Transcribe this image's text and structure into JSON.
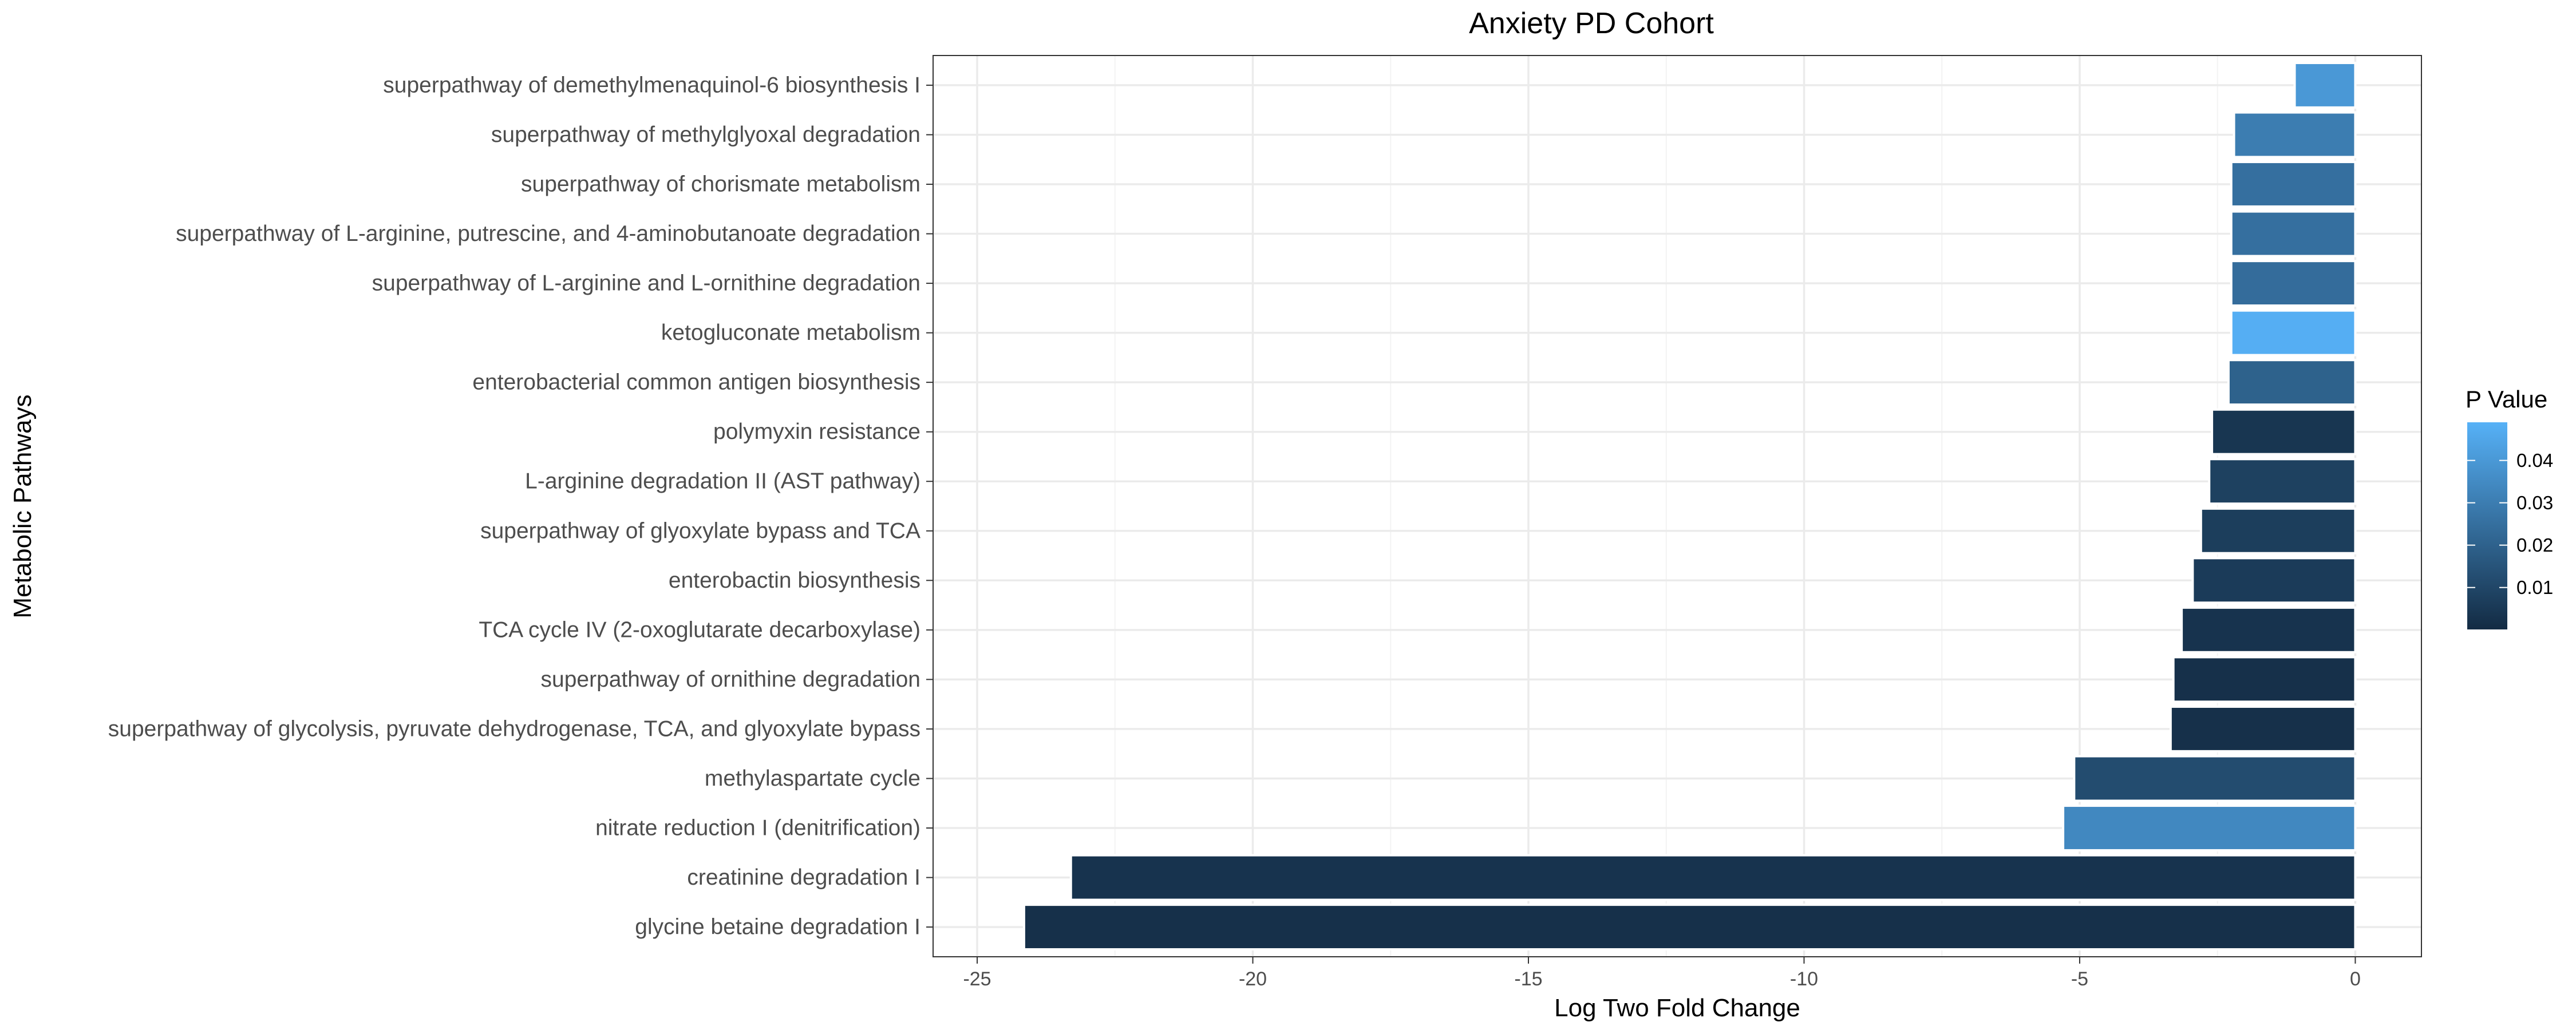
{
  "chart_data": {
    "type": "bar",
    "orientation": "horizontal",
    "title": "Anxiety PD Cohort",
    "xlabel": "Log Two Fold Change",
    "ylabel": "Metabolic Pathways",
    "xlim": [
      -25.8,
      1.2
    ],
    "x_ticks": [
      -25,
      -20,
      -15,
      -10,
      -5,
      0
    ],
    "grid": true,
    "legend": {
      "title": "P Value",
      "position": "right",
      "range": [
        0.0001,
        0.049
      ],
      "ticks": [
        0.01,
        0.02,
        0.03,
        0.04
      ],
      "tick_labels": [
        "0.01",
        "0.02",
        "0.03",
        "0.04"
      ],
      "low_color": "#132b43",
      "high_color": "#56b1f7"
    },
    "categories": [
      "superpathway of demethylmenaquinol-6 biosynthesis I",
      "superpathway of methylglyoxal degradation",
      "superpathway of chorismate metabolism",
      "superpathway of L-arginine, putrescine, and 4-aminobutanoate degradation",
      "superpathway of L-arginine and L-ornithine degradation",
      "ketogluconate metabolism",
      "enterobacterial common antigen biosynthesis",
      "polymyxin resistance",
      "L-arginine degradation II (AST pathway)",
      "superpathway of glyoxylate bypass and TCA",
      "enterobactin biosynthesis",
      "TCA cycle IV (2-oxoglutarate decarboxylase)",
      "superpathway of ornithine degradation",
      "superpathway of glycolysis, pyruvate dehydrogenase, TCA, and glyoxylate bypass",
      "methylaspartate cycle",
      "nitrate reduction I (denitrification)",
      "creatinine degradation I",
      "glycine betaine degradation I"
    ],
    "values": [
      -1.1,
      -2.2,
      -2.25,
      -2.25,
      -2.25,
      -2.25,
      -2.3,
      -2.6,
      -2.65,
      -2.8,
      -2.95,
      -3.15,
      -3.3,
      -3.35,
      -5.1,
      -5.3,
      -23.3,
      -24.15
    ],
    "p_values": [
      0.04,
      0.03,
      0.025,
      0.025,
      0.024,
      0.048,
      0.02,
      0.004,
      0.008,
      0.007,
      0.006,
      0.003,
      0.002,
      0.002,
      0.012,
      0.034,
      0.003,
      0.002
    ]
  }
}
